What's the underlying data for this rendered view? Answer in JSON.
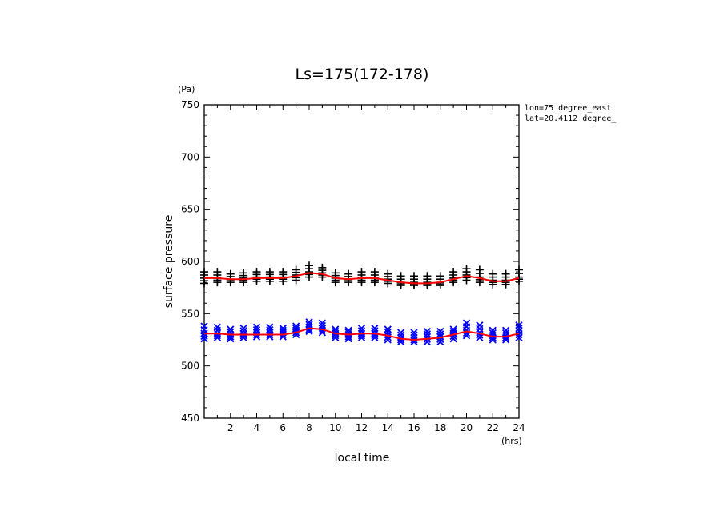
{
  "chart_data": {
    "type": "scatter",
    "title": "Ls=175(172-178)",
    "xlabel": "local time",
    "ylabel": "surface pressure",
    "x_unit": "(hrs)",
    "y_unit": "(Pa)",
    "annotations": [
      "lon=75 degree_east",
      "lat=20.4112 degree_"
    ],
    "xlim": [
      0,
      24
    ],
    "ylim": [
      450,
      750
    ],
    "x_ticks": [
      2,
      4,
      6,
      8,
      10,
      12,
      14,
      16,
      18,
      20,
      22,
      24
    ],
    "y_ticks": [
      450,
      500,
      550,
      600,
      650,
      700,
      750
    ],
    "grid": false,
    "series": [
      {
        "marker": "+",
        "color": "#000000",
        "x": [
          0,
          1,
          2,
          3,
          4,
          5,
          6,
          7,
          8,
          9,
          10,
          11,
          12,
          13,
          14,
          15,
          16,
          17,
          18,
          19,
          20,
          21,
          22,
          23,
          24
        ],
        "y_min": [
          579,
          580,
          580,
          580,
          581,
          581,
          581,
          582,
          585,
          585,
          580,
          580,
          580,
          580,
          579,
          577,
          577,
          577,
          577,
          580,
          582,
          580,
          578,
          578,
          581
        ],
        "y_max": [
          590,
          590,
          588,
          589,
          590,
          590,
          590,
          592,
          596,
          594,
          589,
          588,
          590,
          590,
          588,
          586,
          586,
          586,
          586,
          590,
          593,
          592,
          588,
          588,
          592
        ],
        "y_mean": [
          584,
          584,
          583,
          584,
          585,
          585,
          585,
          587,
          590,
          589,
          584,
          583,
          584,
          584,
          583,
          580,
          580,
          580,
          580,
          584,
          587,
          585,
          582,
          582,
          585
        ]
      },
      {
        "marker": "x",
        "color": "#0000ff",
        "x": [
          0,
          1,
          2,
          3,
          4,
          5,
          6,
          7,
          8,
          9,
          10,
          11,
          12,
          13,
          14,
          15,
          16,
          17,
          18,
          19,
          20,
          21,
          22,
          23,
          24
        ],
        "y_min": [
          526,
          527,
          526,
          527,
          528,
          528,
          528,
          530,
          533,
          532,
          527,
          526,
          527,
          527,
          525,
          523,
          523,
          523,
          523,
          526,
          529,
          527,
          525,
          525,
          527
        ],
        "y_max": [
          538,
          537,
          535,
          536,
          537,
          537,
          536,
          538,
          542,
          541,
          535,
          534,
          536,
          536,
          535,
          532,
          532,
          533,
          533,
          535,
          541,
          539,
          534,
          534,
          539
        ],
        "y_mean": [
          531,
          531,
          530,
          531,
          532,
          532,
          532,
          534,
          537,
          536,
          531,
          530,
          531,
          531,
          530,
          527,
          527,
          528,
          528,
          531,
          534,
          532,
          529,
          529,
          533
        ]
      }
    ],
    "fit_lines": [
      {
        "color": "#ff0000",
        "x": [
          0,
          1,
          2,
          3,
          4,
          5,
          6,
          7,
          8,
          9,
          10,
          11,
          12,
          13,
          14,
          15,
          16,
          17,
          18,
          19,
          20,
          21,
          22,
          23,
          24
        ],
        "y": [
          584,
          584,
          583,
          583,
          584,
          584,
          584,
          586,
          589,
          588,
          584,
          583,
          584,
          584,
          582,
          580,
          579,
          579,
          580,
          583,
          586,
          584,
          581,
          581,
          584
        ]
      },
      {
        "color": "#ff0000",
        "x": [
          0,
          1,
          2,
          3,
          4,
          5,
          6,
          7,
          8,
          9,
          10,
          11,
          12,
          13,
          14,
          15,
          16,
          17,
          18,
          19,
          20,
          21,
          22,
          23,
          24
        ],
        "y": [
          531,
          531,
          530,
          530,
          530,
          530,
          530,
          532,
          536,
          535,
          531,
          530,
          531,
          531,
          529,
          526,
          525,
          526,
          527,
          530,
          533,
          531,
          528,
          528,
          531
        ]
      }
    ]
  }
}
